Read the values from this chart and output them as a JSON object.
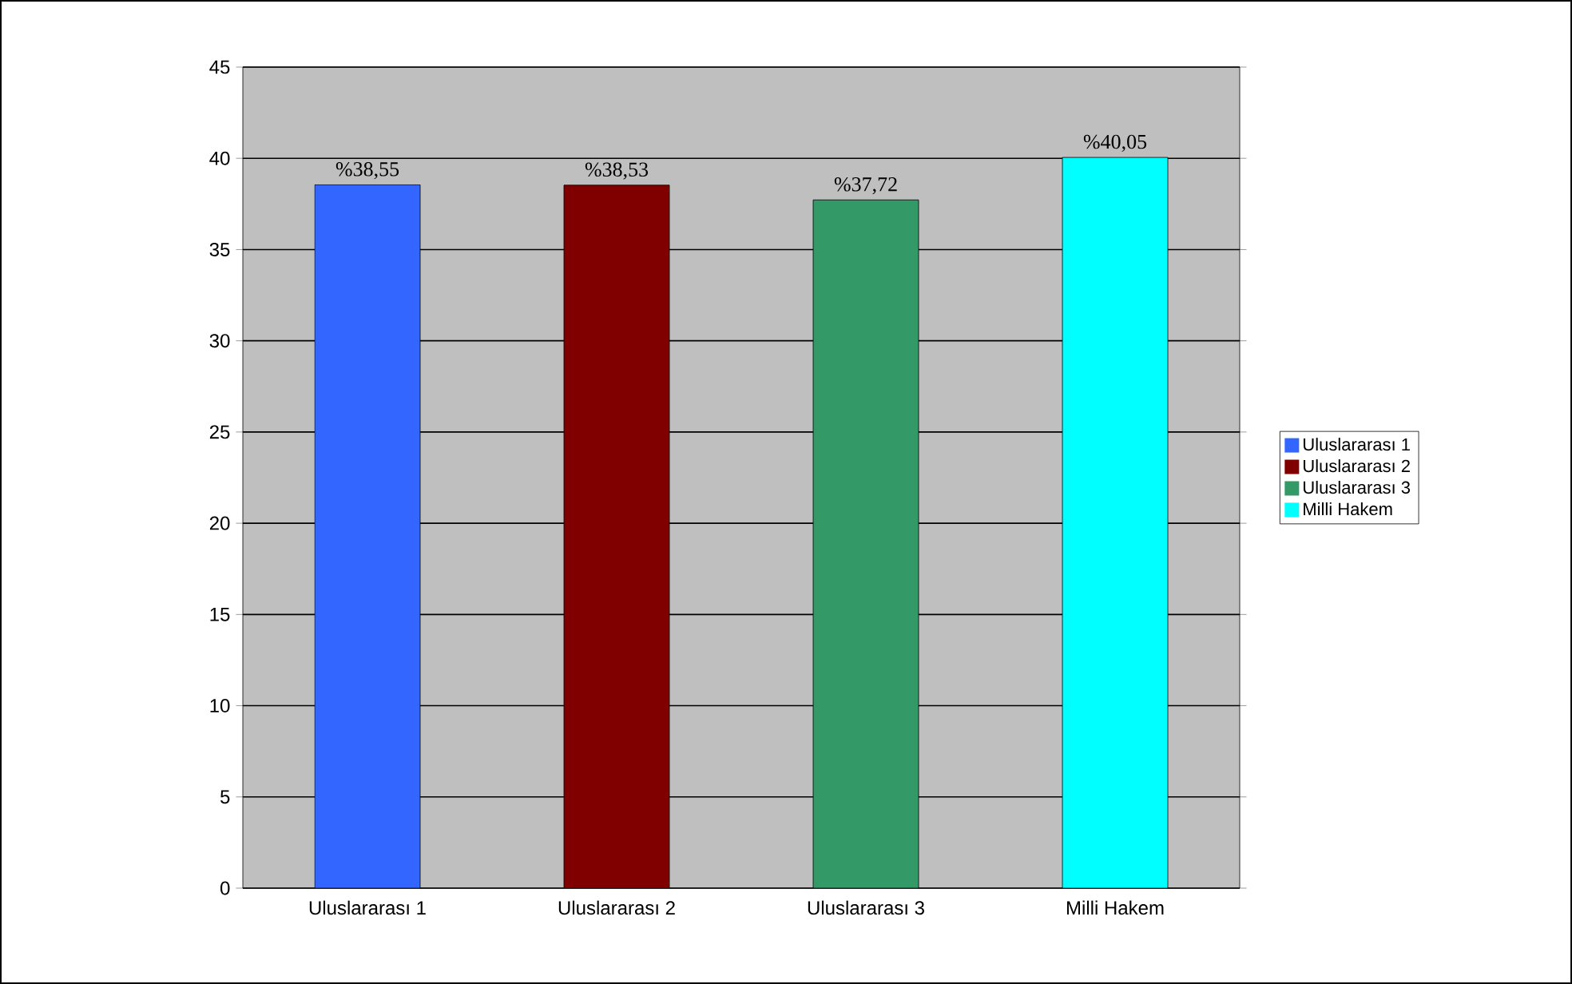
{
  "chart_data": {
    "type": "bar",
    "categories": [
      "Uluslararası 1",
      "Uluslararası 2",
      "Uluslararası 3",
      "Milli Hakem"
    ],
    "series": [
      {
        "name": "Uluslararası 1",
        "color": "#3366ff",
        "values": [
          38.55,
          null,
          null,
          null
        ],
        "value_labels": [
          "%38,55",
          null,
          null,
          null
        ]
      },
      {
        "name": "Uluslararası 2",
        "color": "#800000",
        "values": [
          null,
          38.53,
          null,
          null
        ],
        "value_labels": [
          null,
          "%38,53",
          null,
          null
        ]
      },
      {
        "name": "Uluslararası 3",
        "color": "#339966",
        "values": [
          null,
          null,
          37.72,
          null
        ],
        "value_labels": [
          null,
          null,
          "%37,72",
          null
        ]
      },
      {
        "name": "Milli Hakem",
        "color": "#00ffff",
        "values": [
          null,
          null,
          null,
          40.05
        ],
        "value_labels": [
          null,
          null,
          null,
          "%40,05"
        ]
      }
    ],
    "ylim": [
      0,
      45
    ],
    "yticks": [
      0,
      5,
      10,
      15,
      20,
      25,
      30,
      35,
      40,
      45
    ],
    "grid": "y",
    "legend": "right"
  }
}
